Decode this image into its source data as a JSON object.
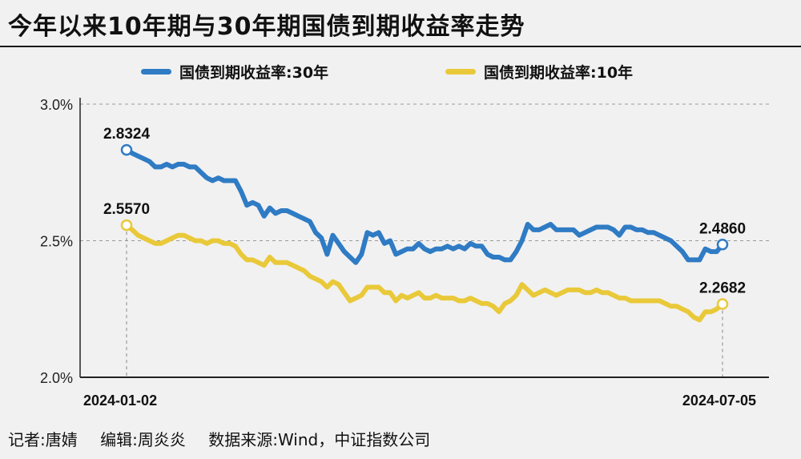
{
  "title": "今年以来10年期与30年期国债到期收益率走势",
  "footer": {
    "reporter": "记者:唐婧",
    "editor": "编辑:周炎炎",
    "source": "数据来源:Wind，中证指数公司"
  },
  "colors": {
    "series_30y": "#2f7bc4",
    "series_10y": "#e9c93a",
    "background": "#f1f1f1"
  },
  "chart_data": {
    "type": "line",
    "title": "今年以来10年期与30年期国债到期收益率走势",
    "xlabel": "",
    "ylabel": "",
    "ylim": [
      2.0,
      3.0
    ],
    "yticks": [
      {
        "value": 2.0,
        "label": "2.0%"
      },
      {
        "value": 2.5,
        "label": "2.5%"
      },
      {
        "value": 3.0,
        "label": "3.0%"
      }
    ],
    "x_start_label": "2024-01-02",
    "x_end_label": "2024-07-05",
    "grid": "dashed horizontal at 2.5% and 3.0%",
    "legend_position": "top",
    "series": [
      {
        "name": "国债到期收益率:30年",
        "color": "#2f7bc4",
        "start_label": "2.8324",
        "end_label": "2.4860",
        "values": [
          2.8324,
          2.82,
          2.81,
          2.8,
          2.79,
          2.77,
          2.77,
          2.78,
          2.77,
          2.78,
          2.78,
          2.77,
          2.77,
          2.75,
          2.73,
          2.72,
          2.73,
          2.72,
          2.72,
          2.72,
          2.68,
          2.63,
          2.64,
          2.63,
          2.59,
          2.62,
          2.6,
          2.61,
          2.61,
          2.6,
          2.59,
          2.58,
          2.57,
          2.53,
          2.51,
          2.45,
          2.52,
          2.49,
          2.46,
          2.44,
          2.42,
          2.45,
          2.53,
          2.52,
          2.53,
          2.49,
          2.5,
          2.45,
          2.46,
          2.47,
          2.47,
          2.49,
          2.47,
          2.46,
          2.47,
          2.47,
          2.48,
          2.47,
          2.48,
          2.47,
          2.49,
          2.48,
          2.48,
          2.45,
          2.44,
          2.44,
          2.43,
          2.43,
          2.46,
          2.5,
          2.56,
          2.54,
          2.54,
          2.55,
          2.56,
          2.54,
          2.54,
          2.54,
          2.54,
          2.52,
          2.53,
          2.54,
          2.55,
          2.55,
          2.55,
          2.54,
          2.52,
          2.55,
          2.55,
          2.54,
          2.54,
          2.53,
          2.53,
          2.52,
          2.51,
          2.5,
          2.48,
          2.46,
          2.43,
          2.43,
          2.43,
          2.47,
          2.46,
          2.46,
          2.486
        ]
      },
      {
        "name": "国债到期收益率:10年",
        "color": "#e9c93a",
        "start_label": "2.5570",
        "end_label": "2.2682",
        "values": [
          2.557,
          2.54,
          2.52,
          2.51,
          2.5,
          2.49,
          2.49,
          2.5,
          2.51,
          2.52,
          2.52,
          2.51,
          2.5,
          2.5,
          2.49,
          2.5,
          2.5,
          2.49,
          2.49,
          2.48,
          2.45,
          2.43,
          2.43,
          2.42,
          2.41,
          2.44,
          2.42,
          2.42,
          2.42,
          2.41,
          2.4,
          2.39,
          2.37,
          2.36,
          2.35,
          2.33,
          2.35,
          2.34,
          2.31,
          2.28,
          2.29,
          2.3,
          2.33,
          2.33,
          2.33,
          2.31,
          2.31,
          2.28,
          2.3,
          2.29,
          2.3,
          2.31,
          2.29,
          2.29,
          2.3,
          2.29,
          2.29,
          2.29,
          2.28,
          2.28,
          2.29,
          2.28,
          2.27,
          2.27,
          2.26,
          2.24,
          2.27,
          2.28,
          2.3,
          2.34,
          2.32,
          2.3,
          2.31,
          2.32,
          2.31,
          2.3,
          2.31,
          2.32,
          2.32,
          2.32,
          2.31,
          2.31,
          2.32,
          2.31,
          2.31,
          2.3,
          2.29,
          2.29,
          2.28,
          2.28,
          2.28,
          2.28,
          2.28,
          2.28,
          2.27,
          2.26,
          2.26,
          2.25,
          2.24,
          2.22,
          2.21,
          2.24,
          2.24,
          2.25,
          2.2682
        ]
      }
    ]
  }
}
